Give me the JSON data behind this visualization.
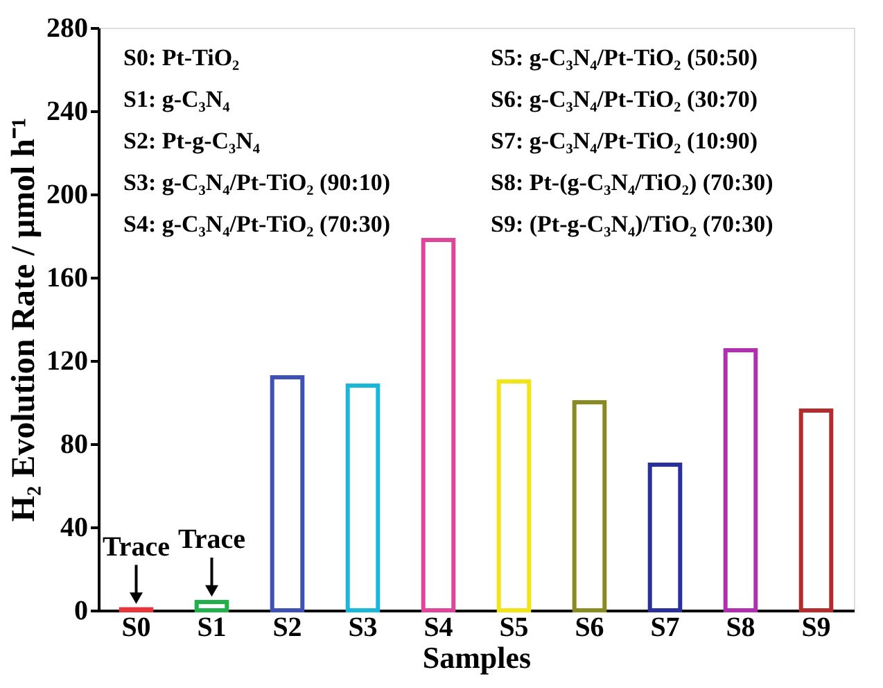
{
  "chart_data": {
    "type": "bar",
    "xlabel": "Samples",
    "ylabel": "H₂ Evolution Rate / μmol h⁻¹",
    "categories": [
      "S0",
      "S1",
      "S2",
      "S3",
      "S4",
      "S5",
      "S6",
      "S7",
      "S8",
      "S9"
    ],
    "values": [
      0.5,
      4,
      112,
      108,
      178,
      110,
      100,
      70,
      125,
      96
    ],
    "colors": [
      "#e8353a",
      "#22b04a",
      "#3f51b5",
      "#1ab8d8",
      "#e0459c",
      "#f2e416",
      "#8a8a22",
      "#2b2f9a",
      "#b02fb0",
      "#b52a2a"
    ],
    "ylim": [
      0,
      280
    ],
    "yticks": [
      0,
      40,
      80,
      120,
      160,
      200,
      240,
      280
    ],
    "grid": false,
    "annotations": [
      {
        "text": "Trace",
        "x": "S0",
        "y": 0.5
      },
      {
        "text": "Trace",
        "x": "S1",
        "y": 4
      },
      "S0: Pt-TiO₂",
      "S1: g-C₃N₄",
      "S2: Pt-g-C₃N₄",
      "S3: g-C₃N₄/Pt-TiO₂ (90:10)",
      "S4: g-C₃N₄/Pt-TiO₂ (70:30)",
      "S5: g-C₃N₄/Pt-TiO₂ (50:50)",
      "S6: g-C₃N₄/Pt-TiO₂ (30:70)",
      "S7: g-C₃N₄/Pt-TiO₂ (10:90)",
      "S8: Pt-(g-C₃N₄/TiO₂) (70:30)",
      "S9: (Pt-g-C₃N₄)/TiO₂ (70:30)"
    ]
  }
}
